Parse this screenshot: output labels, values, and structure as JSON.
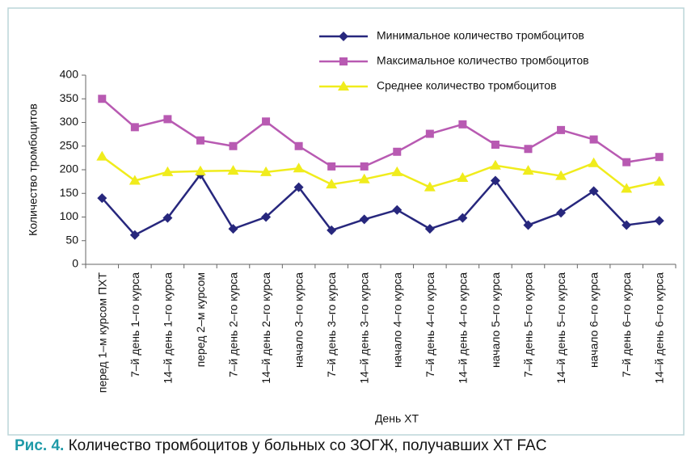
{
  "chart_data": {
    "type": "line",
    "y_label": "Количество тромбоцитов",
    "x_label": "День ХТ",
    "categories": [
      "перед 1–м курсом ПХТ",
      "7–й день 1–го курса",
      "14–й день 1–го курса",
      "перед 2–м курсом",
      "7–й день 2–го курса",
      "14–й день 2–го курса",
      "начало 3–го курса",
      "7–й день 3–го курса",
      "14–й день 3–го курса",
      "начало 4–го курса",
      "7–й день 4–го курса",
      "14–й день 4–го курса",
      "начало 5–го курса",
      "7–й день 5–го курса",
      "14–й день 5–го курса",
      "начало 6–го курса",
      "7–й день 6–го курса",
      "14–й день 6–го курса"
    ],
    "series": [
      {
        "name": "Минимальное количество тромбоцитов",
        "color": "#27277d",
        "marker": "diamond",
        "values": [
          140,
          62,
          98,
          190,
          75,
          100,
          163,
          72,
          95,
          115,
          75,
          98,
          177,
          83,
          109,
          155,
          83,
          92
        ]
      },
      {
        "name": "Максимальное количество тромбоцитов",
        "color": "#b85ab2",
        "marker": "square",
        "values": [
          350,
          290,
          307,
          262,
          250,
          302,
          250,
          207,
          207,
          238,
          276,
          296,
          253,
          244,
          284,
          264,
          216,
          227
        ]
      },
      {
        "name": "Среднее количество тромбоцитов",
        "color": "#f0ec1c",
        "marker": "triangle",
        "values": [
          228,
          177,
          195,
          197,
          198,
          195,
          203,
          169,
          180,
          195,
          163,
          183,
          209,
          198,
          187,
          214,
          160,
          175
        ]
      }
    ],
    "ylim": [
      0,
      400
    ],
    "yticks": [
      0,
      50,
      100,
      150,
      200,
      250,
      300,
      350,
      400
    ],
    "grid": false
  },
  "caption": {
    "label": "Рис. 4.",
    "text": "Количество тромбоцитов у больных со ЗОГЖ, получавших ХТ FAC"
  }
}
